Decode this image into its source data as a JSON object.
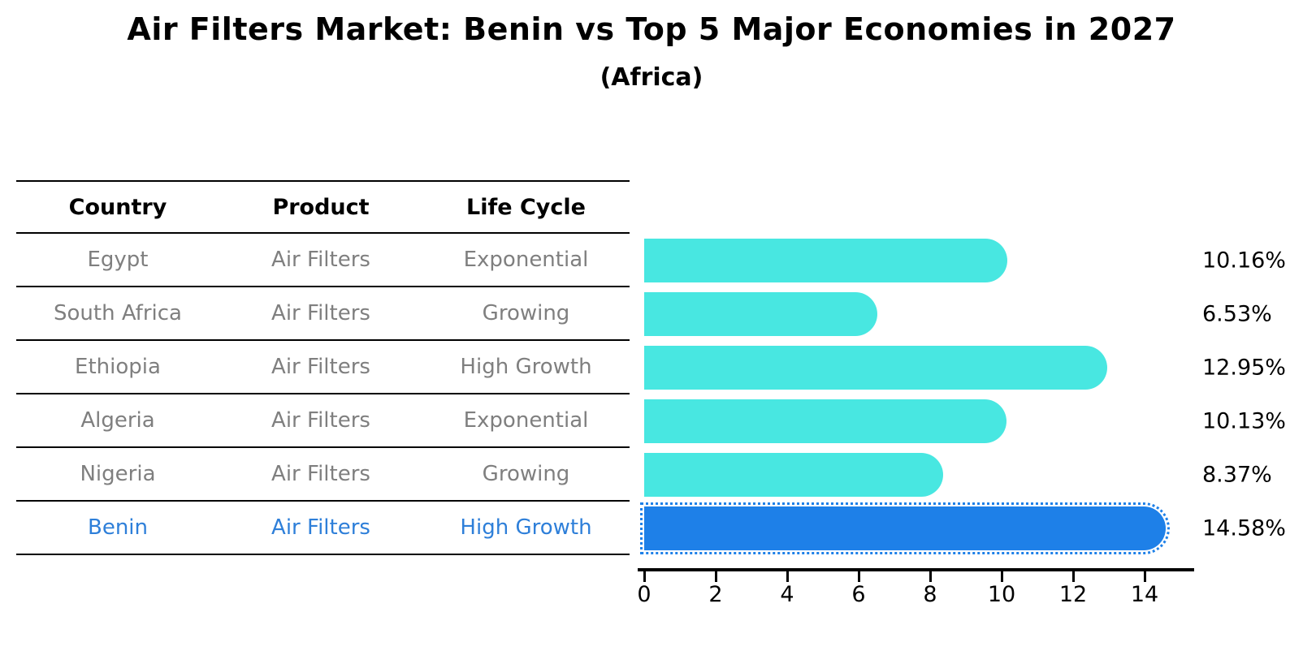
{
  "title": "Air Filters Market: Benin vs Top 5 Major Economies in 2027",
  "subtitle": "(Africa)",
  "table": {
    "headers": [
      "Country",
      "Product",
      "Life Cycle"
    ],
    "rows": [
      {
        "country": "Egypt",
        "product": "Air Filters",
        "life_cycle": "Exponential",
        "highlight": false
      },
      {
        "country": "South Africa",
        "product": "Air Filters",
        "life_cycle": "Growing",
        "highlight": false
      },
      {
        "country": "Ethiopia",
        "product": "Air Filters",
        "life_cycle": "High Growth",
        "highlight": false
      },
      {
        "country": "Algeria",
        "product": "Air Filters",
        "life_cycle": "Exponential",
        "highlight": false
      },
      {
        "country": "Nigeria",
        "product": "Air Filters",
        "life_cycle": "Growing",
        "highlight": false
      },
      {
        "country": "Benin",
        "product": "Air Filters",
        "life_cycle": "High Growth",
        "highlight": true
      }
    ]
  },
  "chart_data": {
    "type": "bar",
    "orientation": "horizontal",
    "title": "Air Filters Market: Benin vs Top 5 Major Economies in 2027",
    "subtitle": "(Africa)",
    "categories": [
      "Egypt",
      "South Africa",
      "Ethiopia",
      "Algeria",
      "Nigeria",
      "Benin"
    ],
    "values": [
      10.16,
      6.53,
      12.95,
      10.13,
      8.37,
      14.58
    ],
    "value_labels": [
      "10.16%",
      "6.53%",
      "12.95%",
      "10.13%",
      "8.37%",
      "14.58%"
    ],
    "xlabel": "",
    "ylabel": "",
    "xlim": [
      0,
      15.4
    ],
    "x_ticks": [
      0,
      2,
      4,
      6,
      8,
      10,
      12,
      14
    ],
    "grid": false,
    "legend": false,
    "highlight_index": 5
  },
  "colors": {
    "bar_color": "#48E7E1",
    "highlight_bar_color": "#1E80E8",
    "highlight_text_color": "#2E7FD9",
    "table_text_color": "#7F7F7F",
    "axis_color": "#000000"
  }
}
